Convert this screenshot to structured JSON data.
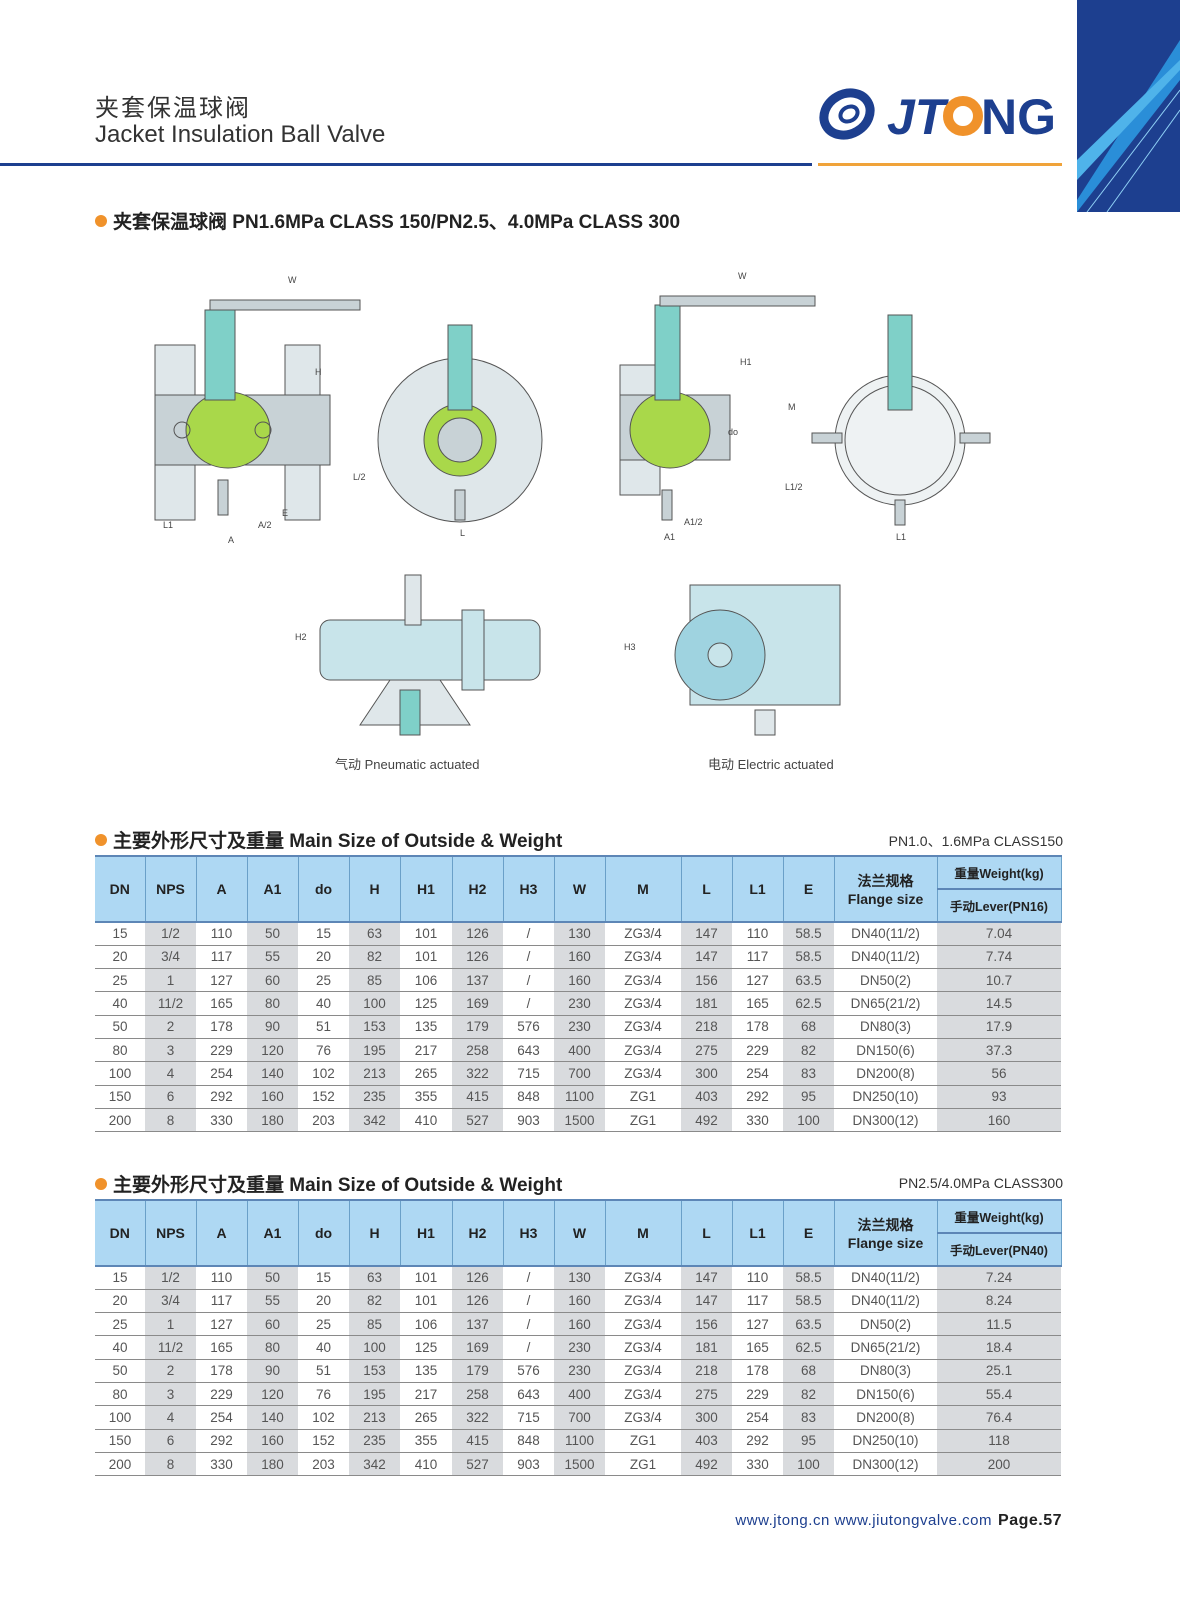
{
  "header": {
    "title_cn": "夹套保温球阀",
    "title_en": "Jacket Insulation Ball Valve",
    "logo_text": "JTONG"
  },
  "colors": {
    "brand_blue": "#1d3f8f",
    "accent_orange": "#f0922b",
    "header_blue": "#aed8f3",
    "shade_gray": "#d9dbde"
  },
  "section1": {
    "title": "夹套保温球阀 PN1.6MPa CLASS 150/PN2.5、4.0MPa CLASS 300"
  },
  "drawings": {
    "labels1": {
      "W": "W",
      "H": "H",
      "L1": "L1",
      "A2": "A/2",
      "E": "E",
      "A": "A",
      "L2": "L/2",
      "L": "L"
    },
    "labels2": {
      "W": "W",
      "H1": "H1",
      "do": "do",
      "M": "M",
      "A12": "A1/2",
      "A1": "A1",
      "L12": "L1/2",
      "L1": "L1"
    },
    "labels3": {
      "H2": "H2",
      "H3": "H3"
    },
    "pneumatic_caption": "气动 Pneumatic actuated",
    "electric_caption": "电动 Electric actuated"
  },
  "tables": [
    {
      "title": "主要外形尺寸及重量 Main Size of Outside & Weight",
      "rating": "PN1.0、1.6MPa CLASS150",
      "columns": [
        "DN",
        "NPS",
        "A",
        "A1",
        "do",
        "H",
        "H1",
        "H2",
        "H3",
        "W",
        "M",
        "L",
        "L1",
        "E"
      ],
      "flange_header_cn": "法兰规格",
      "flange_header_en": "Flange size",
      "weight_header": "重量Weight(kg)",
      "weight_sub": "手动Lever(PN16)",
      "rows": [
        [
          "15",
          "1/2",
          "110",
          "50",
          "15",
          "63",
          "101",
          "126",
          "/",
          "130",
          "ZG3/4",
          "147",
          "110",
          "58.5",
          "DN40(11/2)",
          "7.04"
        ],
        [
          "20",
          "3/4",
          "117",
          "55",
          "20",
          "82",
          "101",
          "126",
          "/",
          "160",
          "ZG3/4",
          "147",
          "117",
          "58.5",
          "DN40(11/2)",
          "7.74"
        ],
        [
          "25",
          "1",
          "127",
          "60",
          "25",
          "85",
          "106",
          "137",
          "/",
          "160",
          "ZG3/4",
          "156",
          "127",
          "63.5",
          "DN50(2)",
          "10.7"
        ],
        [
          "40",
          "11/2",
          "165",
          "80",
          "40",
          "100",
          "125",
          "169",
          "/",
          "230",
          "ZG3/4",
          "181",
          "165",
          "62.5",
          "DN65(21/2)",
          "14.5"
        ],
        [
          "50",
          "2",
          "178",
          "90",
          "51",
          "153",
          "135",
          "179",
          "576",
          "230",
          "ZG3/4",
          "218",
          "178",
          "68",
          "DN80(3)",
          "17.9"
        ],
        [
          "80",
          "3",
          "229",
          "120",
          "76",
          "195",
          "217",
          "258",
          "643",
          "400",
          "ZG3/4",
          "275",
          "229",
          "82",
          "DN150(6)",
          "37.3"
        ],
        [
          "100",
          "4",
          "254",
          "140",
          "102",
          "213",
          "265",
          "322",
          "715",
          "700",
          "ZG3/4",
          "300",
          "254",
          "83",
          "DN200(8)",
          "56"
        ],
        [
          "150",
          "6",
          "292",
          "160",
          "152",
          "235",
          "355",
          "415",
          "848",
          "1100",
          "ZG1",
          "403",
          "292",
          "95",
          "DN250(10)",
          "93"
        ],
        [
          "200",
          "8",
          "330",
          "180",
          "203",
          "342",
          "410",
          "527",
          "903",
          "1500",
          "ZG1",
          "492",
          "330",
          "100",
          "DN300(12)",
          "160"
        ]
      ]
    },
    {
      "title": "主要外形尺寸及重量 Main Size of Outside & Weight",
      "rating": "PN2.5/4.0MPa  CLASS300",
      "columns": [
        "DN",
        "NPS",
        "A",
        "A1",
        "do",
        "H",
        "H1",
        "H2",
        "H3",
        "W",
        "M",
        "L",
        "L1",
        "E"
      ],
      "flange_header_cn": "法兰规格",
      "flange_header_en": "Flange size",
      "weight_header": "重量Weight(kg)",
      "weight_sub": "手动Lever(PN40)",
      "rows": [
        [
          "15",
          "1/2",
          "110",
          "50",
          "15",
          "63",
          "101",
          "126",
          "/",
          "130",
          "ZG3/4",
          "147",
          "110",
          "58.5",
          "DN40(11/2)",
          "7.24"
        ],
        [
          "20",
          "3/4",
          "117",
          "55",
          "20",
          "82",
          "101",
          "126",
          "/",
          "160",
          "ZG3/4",
          "147",
          "117",
          "58.5",
          "DN40(11/2)",
          "8.24"
        ],
        [
          "25",
          "1",
          "127",
          "60",
          "25",
          "85",
          "106",
          "137",
          "/",
          "160",
          "ZG3/4",
          "156",
          "127",
          "63.5",
          "DN50(2)",
          "11.5"
        ],
        [
          "40",
          "11/2",
          "165",
          "80",
          "40",
          "100",
          "125",
          "169",
          "/",
          "230",
          "ZG3/4",
          "181",
          "165",
          "62.5",
          "DN65(21/2)",
          "18.4"
        ],
        [
          "50",
          "2",
          "178",
          "90",
          "51",
          "153",
          "135",
          "179",
          "576",
          "230",
          "ZG3/4",
          "218",
          "178",
          "68",
          "DN80(3)",
          "25.1"
        ],
        [
          "80",
          "3",
          "229",
          "120",
          "76",
          "195",
          "217",
          "258",
          "643",
          "400",
          "ZG3/4",
          "275",
          "229",
          "82",
          "DN150(6)",
          "55.4"
        ],
        [
          "100",
          "4",
          "254",
          "140",
          "102",
          "213",
          "265",
          "322",
          "715",
          "700",
          "ZG3/4",
          "300",
          "254",
          "83",
          "DN200(8)",
          "76.4"
        ],
        [
          "150",
          "6",
          "292",
          "160",
          "152",
          "235",
          "355",
          "415",
          "848",
          "1100",
          "ZG1",
          "403",
          "292",
          "95",
          "DN250(10)",
          "118"
        ],
        [
          "200",
          "8",
          "330",
          "180",
          "203",
          "342",
          "410",
          "527",
          "903",
          "1500",
          "ZG1",
          "492",
          "330",
          "100",
          "DN300(12)",
          "200"
        ]
      ]
    }
  ],
  "footer": {
    "urls": "www.jtong.cn  www.jiutongvalve.com",
    "page": "Page.57"
  }
}
